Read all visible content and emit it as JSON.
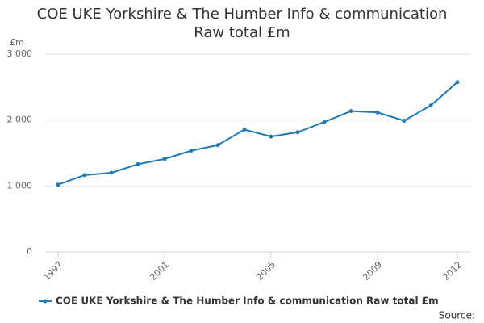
{
  "chart_data": {
    "type": "line",
    "title": [
      "COE UKE Yorkshire & The Humber Info & communication",
      "Raw total £m"
    ],
    "y_axis_label": "£m",
    "source": "Source:",
    "x": [
      1997,
      1998,
      1999,
      2000,
      2001,
      2002,
      2003,
      2004,
      2005,
      2006,
      2007,
      2008,
      2009,
      2010,
      2011,
      2012
    ],
    "xlim": [
      1997,
      2012
    ],
    "xticks": [
      1997,
      2001,
      2005,
      2009,
      2012
    ],
    "ylim": [
      0,
      3000
    ],
    "yticks": [
      {
        "value": 0,
        "label": "0"
      },
      {
        "value": 1000,
        "label": "1 000"
      },
      {
        "value": 2000,
        "label": "2 000"
      },
      {
        "value": 3000,
        "label": "3 000"
      }
    ],
    "grid": true,
    "series": [
      {
        "name": "COE UKE Yorkshire & The Humber Info & communication Raw total £m",
        "color": "#1f7bb5",
        "values": [
          1020,
          1165,
          1200,
          1330,
          1410,
          1535,
          1620,
          1855,
          1750,
          1815,
          1970,
          2135,
          2115,
          1990,
          2220,
          2575
        ]
      }
    ]
  }
}
